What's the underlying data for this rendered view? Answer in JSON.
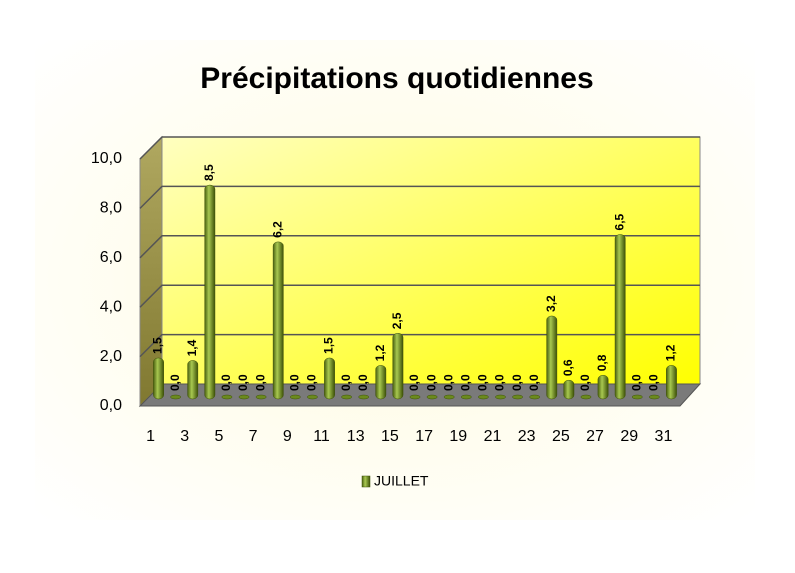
{
  "chart_data": {
    "type": "bar",
    "title": "Précipitations quotidiennes",
    "categories": [
      "1",
      null,
      "3",
      null,
      "5",
      null,
      "7",
      null,
      "9",
      null,
      "11",
      null,
      "13",
      null,
      "15",
      null,
      "17",
      null,
      "19",
      null,
      "21",
      null,
      "23",
      null,
      "25",
      null,
      "27",
      null,
      "29",
      null,
      "31"
    ],
    "series": [
      {
        "name": "JUILLET",
        "color": "#6b8a1e",
        "values": [
          1.5,
          0,
          1.4,
          8.5,
          0,
          0,
          0,
          6.2,
          0,
          0,
          1.5,
          0,
          0,
          1.2,
          2.5,
          0,
          0,
          0,
          0,
          0,
          0,
          0,
          0,
          3.2,
          0.6,
          0,
          0.8,
          6.5,
          0,
          0,
          1.2
        ],
        "value_labels": [
          "1,5",
          "0,0",
          "1,4",
          "8,5",
          "0,0",
          "0,0",
          "0,0",
          "6,2",
          "0,0",
          "0,0",
          "1,5",
          "0,0",
          "0,0",
          "1,2",
          "2,5",
          "0,0",
          "0,0",
          "0,0",
          "0,0",
          "0,0",
          "0,0",
          "0,0",
          "0,0",
          "3,2",
          "0,6",
          "0,0",
          "0,8",
          "6,5",
          "0,0",
          "0,0",
          "1,2"
        ]
      }
    ],
    "ylim": [
      0,
      10
    ],
    "yticks": [
      {
        "value": 0,
        "label": "0,0"
      },
      {
        "value": 2,
        "label": "2,0"
      },
      {
        "value": 4,
        "label": "4,0"
      },
      {
        "value": 6,
        "label": "6,0"
      },
      {
        "value": 8,
        "label": "8,0"
      },
      {
        "value": 10,
        "label": "10,0"
      }
    ],
    "grid": true
  }
}
